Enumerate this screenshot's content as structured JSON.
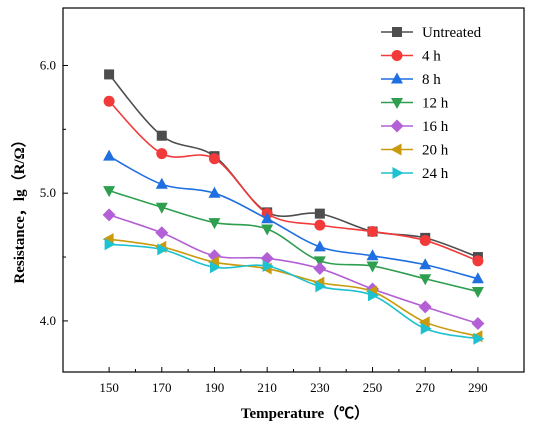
{
  "chart_data": {
    "type": "line",
    "title": "",
    "xlabel": "Temperature（℃）",
    "ylabel": "Resistance，lg（R/Ω）",
    "x": [
      150,
      170,
      190,
      210,
      230,
      250,
      270,
      290
    ],
    "xticks": [
      "150",
      "170",
      "190",
      "210",
      "230",
      "250",
      "270",
      "290"
    ],
    "yticks": [
      "4.0",
      "5.0",
      "6.0"
    ],
    "xlim": [
      132.5,
      307.5
    ],
    "ylim": [
      3.6,
      6.45
    ],
    "grid": false,
    "legend_position": "top-right",
    "series": [
      {
        "name": "Untreated",
        "marker": "square",
        "color": "#4d4d4d",
        "values": [
          5.93,
          5.45,
          5.29,
          4.85,
          4.84,
          4.7,
          4.65,
          4.5
        ]
      },
      {
        "name": "4 h",
        "marker": "circle",
        "color": "#f23a3a",
        "values": [
          5.72,
          5.31,
          5.27,
          4.84,
          4.75,
          4.7,
          4.63,
          4.47
        ]
      },
      {
        "name": "8 h",
        "marker": "triangle-up",
        "color": "#1f6fe0",
        "values": [
          5.29,
          5.07,
          5.0,
          4.8,
          4.58,
          4.51,
          4.44,
          4.33
        ]
      },
      {
        "name": "12 h",
        "marker": "triangle-down",
        "color": "#2e9e4f",
        "values": [
          5.02,
          4.89,
          4.77,
          4.72,
          4.47,
          4.43,
          4.33,
          4.23
        ]
      },
      {
        "name": "16 h",
        "marker": "diamond",
        "color": "#b360d6",
        "values": [
          4.83,
          4.69,
          4.51,
          4.49,
          4.41,
          4.25,
          4.11,
          3.98
        ]
      },
      {
        "name": "20 h",
        "marker": "triangle-left",
        "color": "#c89a0c",
        "values": [
          4.64,
          4.58,
          4.46,
          4.41,
          4.3,
          4.23,
          3.99,
          3.88
        ]
      },
      {
        "name": "24 h",
        "marker": "triangle-right",
        "color": "#1ec1cf",
        "values": [
          4.6,
          4.56,
          4.42,
          4.43,
          4.27,
          4.2,
          3.94,
          3.86
        ]
      }
    ]
  }
}
